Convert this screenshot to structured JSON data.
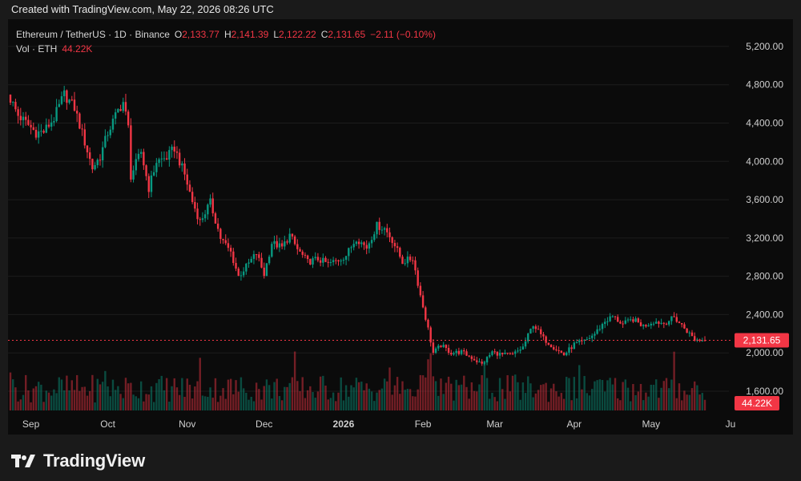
{
  "header": {
    "caption": "Created with TradingView.com, May 22, 2026 08:26 UTC"
  },
  "legend": {
    "symbol": "Ethereum / TetherUS · 1D · Binance",
    "o_label": "O",
    "o_value": "2,133.77",
    "h_label": "H",
    "h_value": "2,141.39",
    "l_label": "L",
    "l_value": "2,122.22",
    "c_label": "C",
    "c_value": "2,131.65",
    "change": "−2.11 (−0.10%)",
    "vol_label": "Vol · ETH",
    "vol_value": "44.22K"
  },
  "footer": {
    "brand": "TradingView",
    "logo_icon": "tradingview-logo-icon"
  },
  "colors": {
    "up": "#089981",
    "down": "#f23645",
    "background": "#0b0b0b",
    "axis_text": "#cfcfcf",
    "grid": "#1c1c1c"
  },
  "chart_data": {
    "type": "candlestick",
    "symbol": "ETH/USDT",
    "interval": "1D",
    "exchange": "Binance",
    "date_range": [
      "2025-08-24",
      "2026-05-22"
    ],
    "y_axis": {
      "ticks": [
        "5,200.00",
        "4,800.00",
        "4,400.00",
        "4,000.00",
        "3,600.00",
        "3,200.00",
        "2,800.00",
        "2,400.00",
        "2,000.00",
        "1,600.00"
      ],
      "range": [
        1600,
        5350
      ]
    },
    "x_axis": {
      "ticks": [
        "Sep",
        "Oct",
        "Nov",
        "Dec",
        "2026",
        "Feb",
        "Mar",
        "Apr",
        "May",
        "Ju"
      ]
    },
    "last_price": {
      "value": 2131.65,
      "label": "2,131.65"
    },
    "last_volume": {
      "label": "44.22K"
    },
    "series": [
      {
        "name": "Price",
        "close_waypoints": [
          [
            "2025-08-24",
            4650
          ],
          [
            "2025-08-27",
            4480
          ],
          [
            "2025-08-31",
            4380
          ],
          [
            "2025-09-03",
            4300
          ],
          [
            "2025-09-06",
            4310
          ],
          [
            "2025-09-10",
            4450
          ],
          [
            "2025-09-14",
            4700
          ],
          [
            "2025-09-18",
            4560
          ],
          [
            "2025-09-22",
            4200
          ],
          [
            "2025-09-25",
            3930
          ],
          [
            "2025-09-28",
            4050
          ],
          [
            "2025-10-01",
            4300
          ],
          [
            "2025-10-05",
            4530
          ],
          [
            "2025-10-07",
            4620
          ],
          [
            "2025-10-09",
            4350
          ],
          [
            "2025-10-10",
            3850
          ],
          [
            "2025-10-14",
            4100
          ],
          [
            "2025-10-17",
            3720
          ],
          [
            "2025-10-20",
            4000
          ],
          [
            "2025-10-24",
            4040
          ],
          [
            "2025-10-27",
            4140
          ],
          [
            "2025-10-31",
            3860
          ],
          [
            "2025-11-03",
            3580
          ],
          [
            "2025-11-06",
            3370
          ],
          [
            "2025-11-10",
            3570
          ],
          [
            "2025-11-14",
            3200
          ],
          [
            "2025-11-18",
            3050
          ],
          [
            "2025-11-21",
            2800
          ],
          [
            "2025-11-24",
            2900
          ],
          [
            "2025-11-28",
            3040
          ],
          [
            "2025-12-01",
            2820
          ],
          [
            "2025-12-04",
            3150
          ],
          [
            "2025-12-08",
            3100
          ],
          [
            "2025-12-11",
            3230
          ],
          [
            "2025-12-14",
            3080
          ],
          [
            "2025-12-18",
            2950
          ],
          [
            "2025-12-22",
            2980
          ],
          [
            "2025-12-26",
            2930
          ],
          [
            "2025-12-30",
            2970
          ],
          [
            "2026-01-02",
            3020
          ],
          [
            "2026-01-06",
            3200
          ],
          [
            "2026-01-10",
            3100
          ],
          [
            "2026-01-14",
            3330
          ],
          [
            "2026-01-17",
            3300
          ],
          [
            "2026-01-20",
            3180
          ],
          [
            "2026-01-24",
            2950
          ],
          [
            "2026-01-28",
            2990
          ],
          [
            "2026-01-31",
            2600
          ],
          [
            "2026-02-03",
            2250
          ],
          [
            "2026-02-05",
            2000
          ],
          [
            "2026-02-08",
            2080
          ],
          [
            "2026-02-12",
            2000
          ],
          [
            "2026-02-16",
            2010
          ],
          [
            "2026-02-20",
            1950
          ],
          [
            "2026-02-24",
            1880
          ],
          [
            "2026-02-28",
            2010
          ],
          [
            "2026-03-04",
            1980
          ],
          [
            "2026-03-08",
            1980
          ],
          [
            "2026-03-12",
            2060
          ],
          [
            "2026-03-16",
            2300
          ],
          [
            "2026-03-20",
            2150
          ],
          [
            "2026-03-24",
            2060
          ],
          [
            "2026-03-28",
            1980
          ],
          [
            "2026-04-01",
            2090
          ],
          [
            "2026-04-05",
            2120
          ],
          [
            "2026-04-09",
            2200
          ],
          [
            "2026-04-13",
            2330
          ],
          [
            "2026-04-16",
            2380
          ],
          [
            "2026-04-20",
            2300
          ],
          [
            "2026-04-24",
            2350
          ],
          [
            "2026-04-28",
            2280
          ],
          [
            "2026-05-02",
            2330
          ],
          [
            "2026-05-06",
            2310
          ],
          [
            "2026-05-10",
            2370
          ],
          [
            "2026-05-14",
            2260
          ],
          [
            "2026-05-18",
            2140
          ],
          [
            "2026-05-22",
            2131.65
          ]
        ]
      }
    ]
  }
}
